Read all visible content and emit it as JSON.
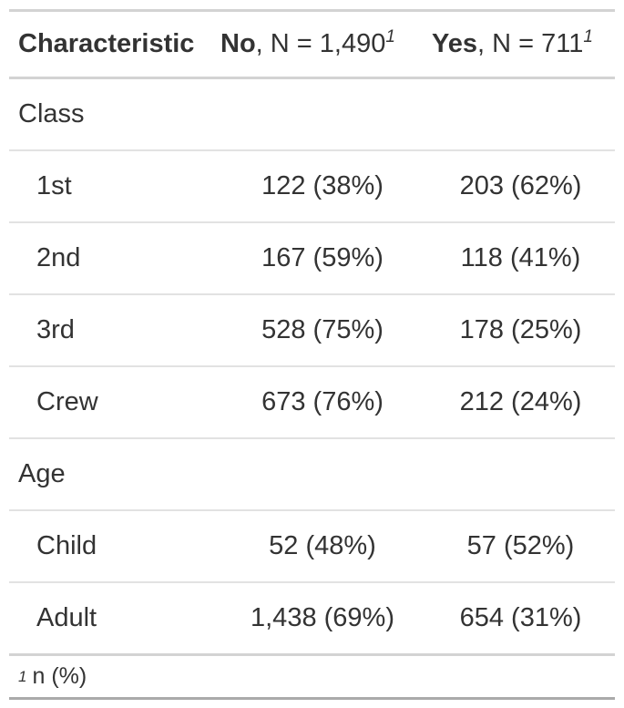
{
  "table": {
    "header": {
      "characteristic": "Characteristic",
      "no_label": "No",
      "no_n": ", N = 1,490",
      "yes_label": "Yes",
      "yes_n": ", N = 711",
      "footnote_mark": "1"
    },
    "groups": [
      {
        "label": "Class",
        "rows": [
          {
            "label": "1st",
            "no": "122 (38%)",
            "yes": "203 (62%)"
          },
          {
            "label": "2nd",
            "no": "167 (59%)",
            "yes": "118 (41%)"
          },
          {
            "label": "3rd",
            "no": "528 (75%)",
            "yes": "178 (25%)"
          },
          {
            "label": "Crew",
            "no": "673 (76%)",
            "yes": "212 (24%)"
          }
        ]
      },
      {
        "label": "Age",
        "rows": [
          {
            "label": "Child",
            "no": "52 (48%)",
            "yes": "57 (52%)"
          },
          {
            "label": "Adult",
            "no": "1,438 (69%)",
            "yes": "654 (31%)"
          }
        ]
      }
    ],
    "footnote": {
      "mark": "1",
      "text": "n (%)"
    }
  }
}
